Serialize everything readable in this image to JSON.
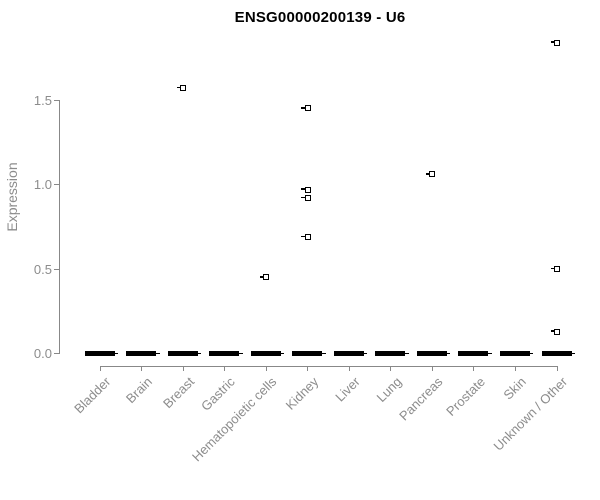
{
  "title": "ENSG00000200139 - U6",
  "colors": {
    "background": "#ffffff",
    "title_text": "#000000",
    "axis_line": "#888888",
    "tick_label_text": "#8c8c8c",
    "marker": "#000000"
  },
  "chart_data": {
    "type": "scatter",
    "title": "ENSG00000200139 - U6",
    "xlabel": "",
    "ylabel": "Expression",
    "yticks": [
      0.0,
      0.5,
      1.0,
      1.5
    ],
    "ylim": [
      0.0,
      1.9
    ],
    "grid": false,
    "legend": false,
    "categories": [
      "Bladder",
      "Brain",
      "Breast",
      "Gastric",
      "Hematopoietic cells",
      "Kidney",
      "Liver",
      "Lung",
      "Pancreas",
      "Prostate",
      "Skin",
      "Unknown / Other"
    ],
    "zero_dash_note": "every category shows a thick black dash of overlapping points at expression 0.0",
    "zero_dash_value": 0.0,
    "points": [
      {
        "category": "Breast",
        "value": 1.57
      },
      {
        "category": "Hematopoietic cells",
        "value": 0.45
      },
      {
        "category": "Kidney",
        "value": 1.45
      },
      {
        "category": "Kidney",
        "value": 0.97
      },
      {
        "category": "Kidney",
        "value": 0.92
      },
      {
        "category": "Kidney",
        "value": 0.69
      },
      {
        "category": "Pancreas",
        "value": 1.06
      },
      {
        "category": "Unknown / Other",
        "value": 1.84
      },
      {
        "category": "Unknown / Other",
        "value": 0.5
      },
      {
        "category": "Unknown / Other",
        "value": 0.13
      }
    ]
  }
}
